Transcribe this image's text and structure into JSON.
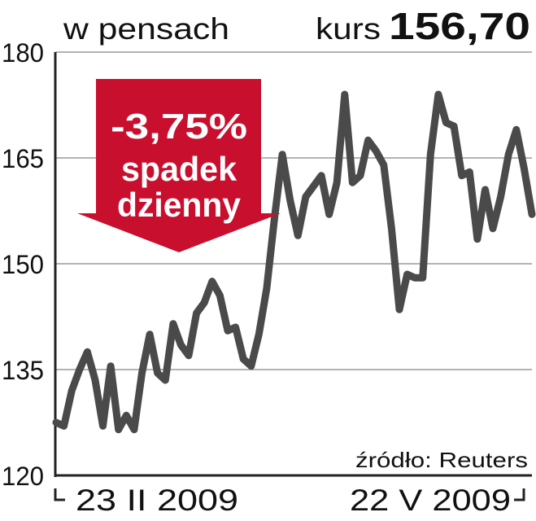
{
  "header": {
    "unit": "w pensach",
    "kurs_label": "kurs",
    "kurs_value": "156,70"
  },
  "badge": {
    "line1": "-3,75%",
    "line2": "spadek",
    "line3": "dzienny",
    "color": "#c8102e"
  },
  "source": "źródło: Reuters",
  "colors": {
    "line": "#4a4a4a",
    "grid": "#9a9a9a",
    "accent": "#c8102e"
  },
  "chart_data": {
    "type": "line",
    "ylim": [
      120,
      180
    ],
    "yticks": [
      120,
      135,
      150,
      165,
      180
    ],
    "grid": true,
    "x_start_label": "23 II 2009",
    "x_end_label": "22 V 2009",
    "series": [
      {
        "values": [
          127.5,
          127,
          132,
          135,
          137.5,
          133.5,
          127,
          135.5,
          126.5,
          128.5,
          126.5,
          134.5,
          140,
          134.5,
          133.5,
          141.5,
          138.5,
          137,
          143,
          144.5,
          147.5,
          145.5,
          140.5,
          141,
          136.5,
          135.5,
          140,
          146.5,
          156.5,
          165.5,
          159,
          154,
          159.5,
          161,
          162.5,
          157,
          161.5,
          174,
          161.5,
          162.5,
          167.5,
          166,
          164,
          155,
          143.5,
          148.5,
          148,
          148,
          165.5,
          174,
          170,
          169.5,
          162.5,
          163,
          153.5,
          160.5,
          155,
          159.5,
          165.5,
          169,
          163.5,
          157
        ]
      }
    ]
  }
}
